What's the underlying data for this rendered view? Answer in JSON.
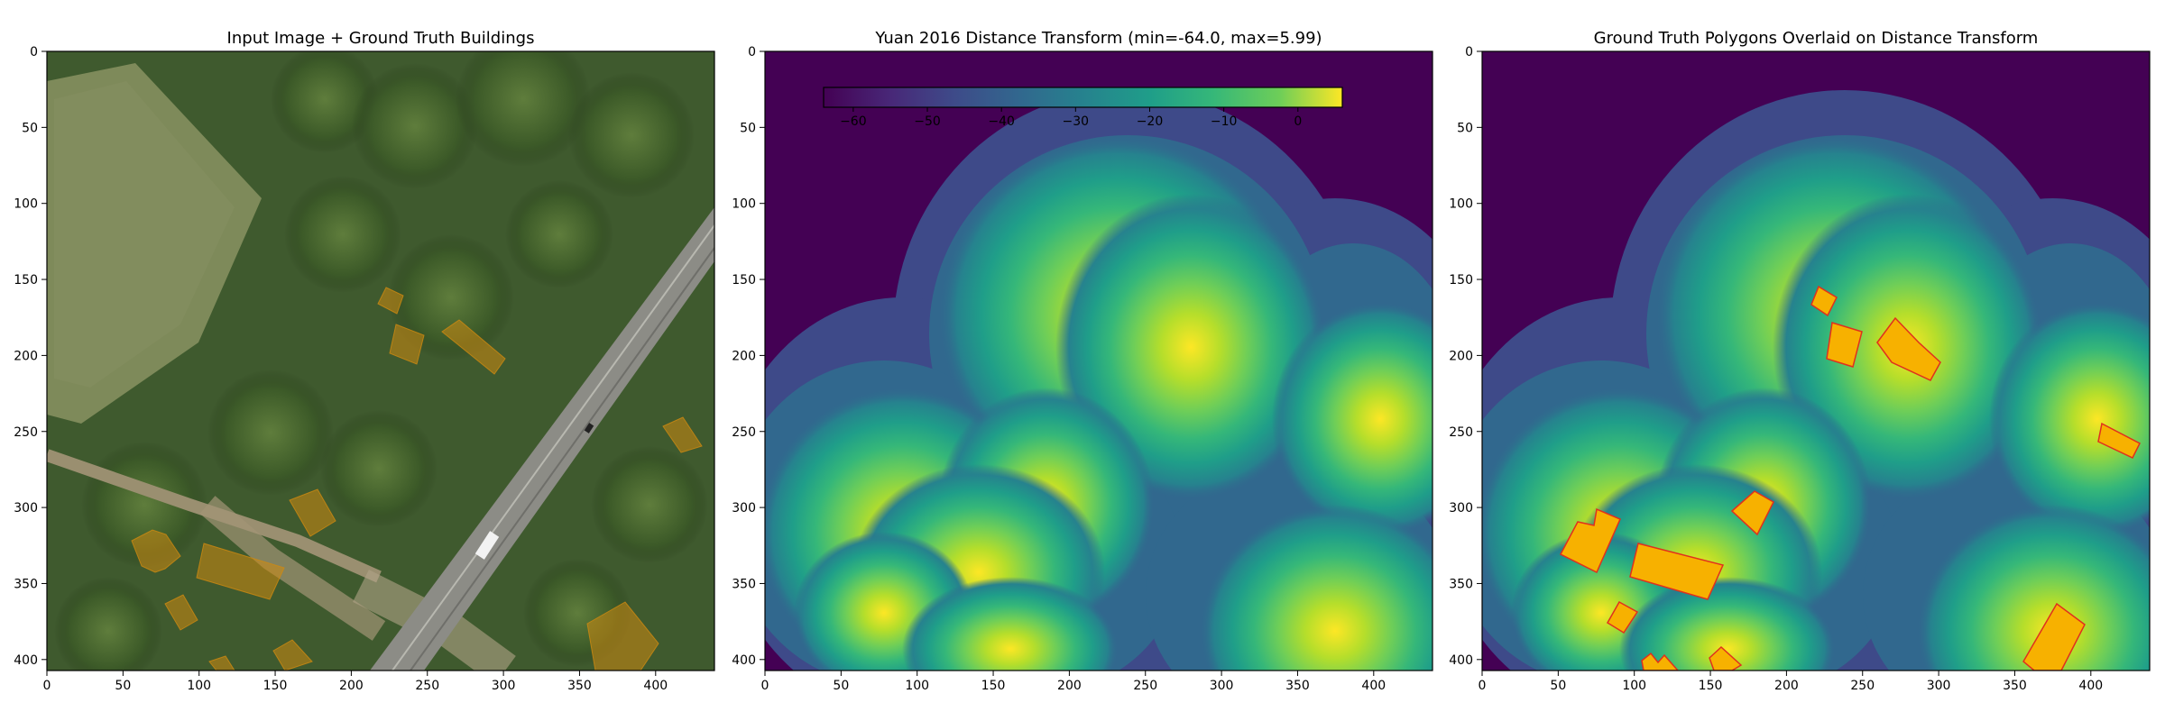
{
  "figure": {
    "panels": [
      {
        "title": "Input Image + Ground Truth Buildings",
        "x_ticks": [
          "0",
          "50",
          "100",
          "150",
          "200",
          "250",
          "300",
          "350",
          "400"
        ],
        "y_ticks": [
          "0",
          "50",
          "100",
          "150",
          "200",
          "250",
          "300",
          "350",
          "400"
        ]
      },
      {
        "title": "Yuan 2016 Distance Transform (min=-64.0, max=5.99)",
        "x_ticks": [
          "0",
          "50",
          "100",
          "150",
          "200",
          "250",
          "300",
          "350",
          "400"
        ],
        "y_ticks": [
          "0",
          "50",
          "100",
          "150",
          "200",
          "250",
          "300",
          "350",
          "400"
        ],
        "colorbar": {
          "ticks": [
            "−60",
            "−50",
            "−40",
            "−30",
            "−20",
            "−10",
            "0"
          ],
          "colormap": "viridis",
          "min": -64.0,
          "max": 5.99
        }
      },
      {
        "title": "Ground Truth Polygons Overlaid on Distance Transform",
        "x_ticks": [
          "0",
          "50",
          "100",
          "150",
          "200",
          "250",
          "300",
          "350",
          "400"
        ],
        "y_ticks": [
          "0",
          "50",
          "100",
          "150",
          "200",
          "250",
          "300",
          "350",
          "400"
        ]
      }
    ]
  },
  "colors": {
    "building_fill": "#f7b100",
    "building_edge": "#e0301e",
    "overlay_tint": "#d08a10",
    "viridis_low": "#440154",
    "viridis_mid": "#21918c",
    "viridis_high": "#fde725"
  }
}
